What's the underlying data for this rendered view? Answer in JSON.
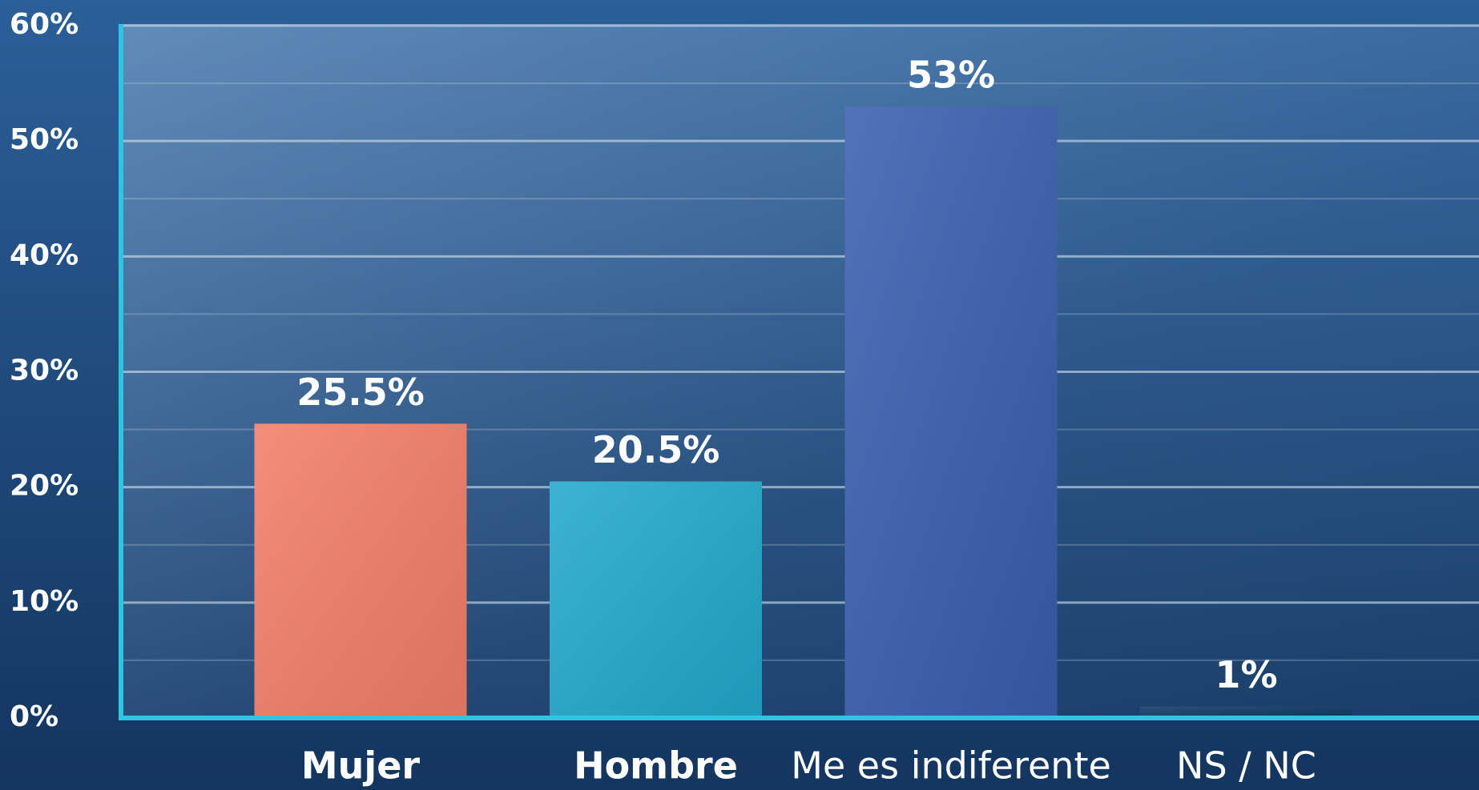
{
  "chart_data": {
    "type": "bar",
    "categories": [
      "Mujer",
      "Hombre",
      "Me es indiferente",
      "NS / NC"
    ],
    "values": [
      25.5,
      20.5,
      53,
      1
    ],
    "value_labels": [
      "25.5%",
      "20.5%",
      "53%",
      "1%"
    ],
    "colors": [
      "#f47e6a",
      "#22a9cd",
      "#3a5fb0",
      "#0f3a66"
    ],
    "ylim": [
      0,
      60
    ],
    "yticks": [
      {
        "value": 0,
        "label": "0%"
      },
      {
        "value": 10,
        "label": "10%"
      },
      {
        "value": 20,
        "label": "20%"
      },
      {
        "value": 30,
        "label": "30%"
      },
      {
        "value": 40,
        "label": "40%"
      },
      {
        "value": 50,
        "label": "50%"
      },
      {
        "value": 60,
        "label": "60%"
      }
    ],
    "grid": true
  }
}
